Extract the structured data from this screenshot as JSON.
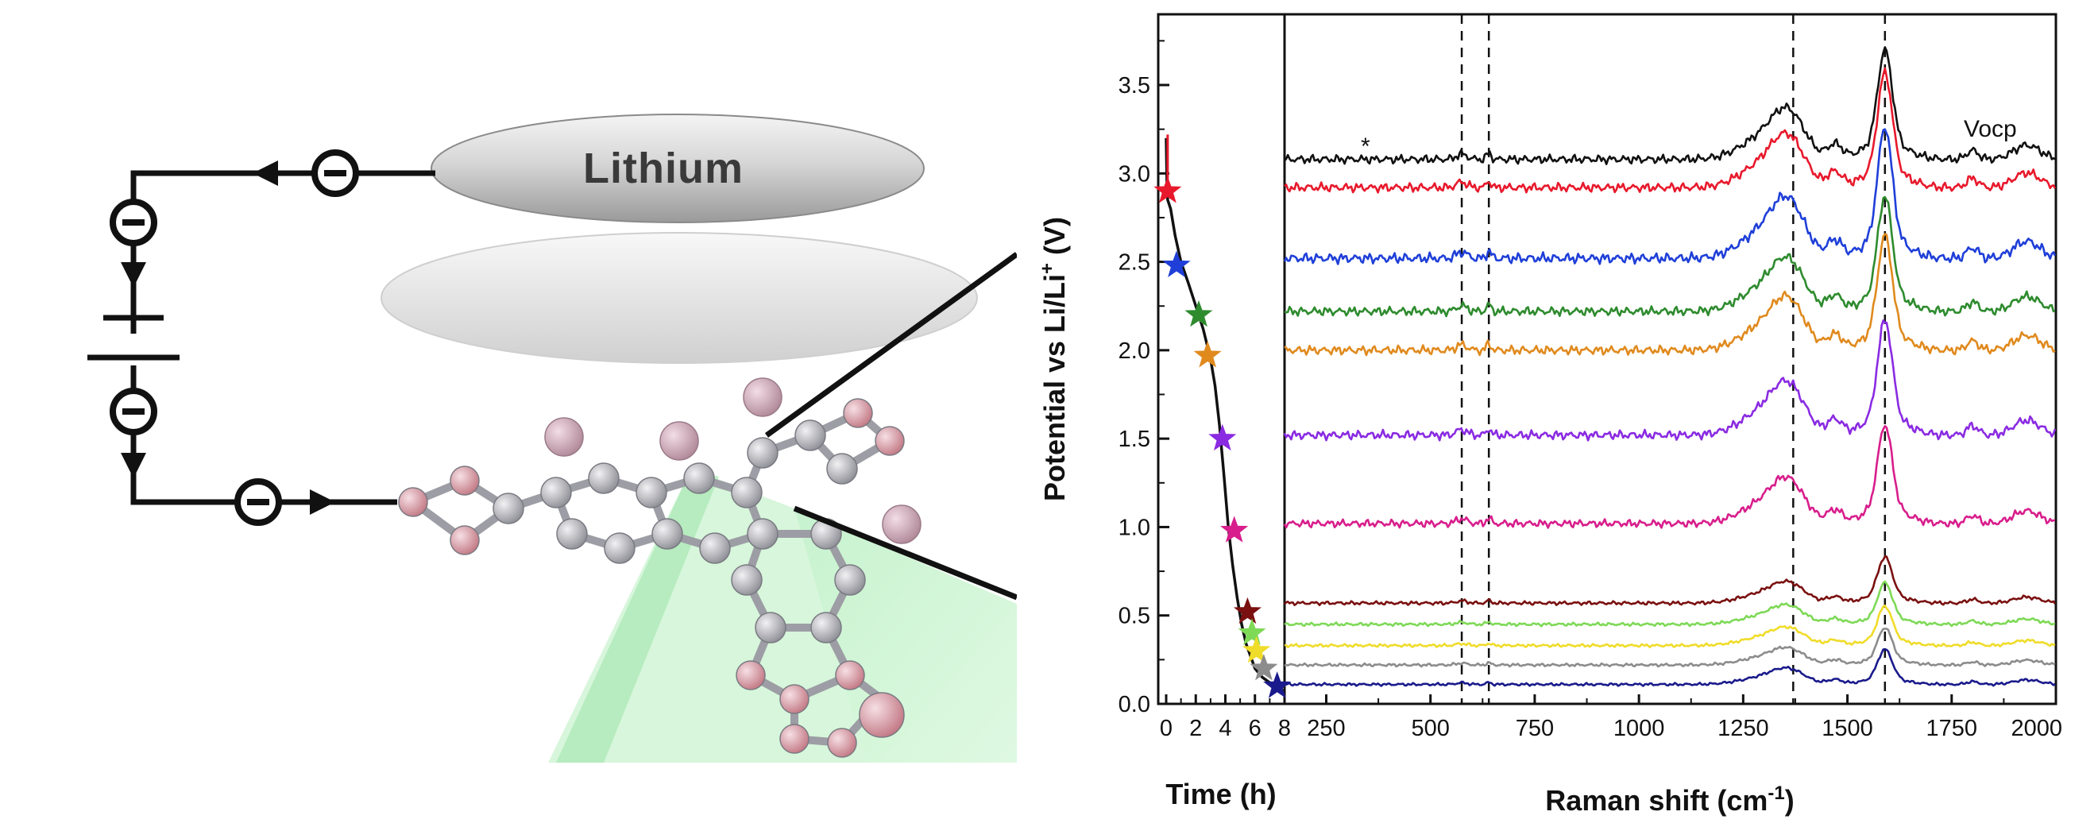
{
  "schematic": {
    "electrode_label": "Lithium"
  },
  "chart_data": [
    {
      "type": "line",
      "xlabel": "Time (h)",
      "ylabel": "Potential vs Li/Li+ (V)",
      "ylabel_parts": [
        "Potential vs Li/Li",
        "+",
        " (V)"
      ],
      "xlim": [
        0,
        8
      ],
      "ylim": [
        0.0,
        3.9
      ],
      "xticks": [
        "0",
        "2",
        "4",
        "6",
        "8"
      ],
      "yticks": [
        "0.0",
        "0.5",
        "1.0",
        "1.5",
        "2.0",
        "2.5",
        "3.0",
        "3.5"
      ],
      "series": [
        {
          "x": [
            0.0,
            0.05,
            0.1,
            0.3,
            0.6,
            1.0,
            1.5,
            2.0,
            2.5,
            3.0,
            3.3,
            3.6,
            3.9,
            4.2,
            4.5,
            4.8,
            5.1,
            5.4,
            5.7,
            6.0,
            6.5,
            7.0,
            7.5
          ],
          "y": [
            3.2,
            2.95,
            2.85,
            2.8,
            2.65,
            2.5,
            2.38,
            2.25,
            2.12,
            1.95,
            1.8,
            1.58,
            1.3,
            1.0,
            0.78,
            0.6,
            0.45,
            0.34,
            0.27,
            0.2,
            0.15,
            0.12,
            0.1
          ]
        }
      ],
      "markers": [
        {
          "x": 0.1,
          "y": 2.9,
          "color": "#e8192c"
        },
        {
          "x": 0.7,
          "y": 2.48,
          "color": "#1f3fd8"
        },
        {
          "x": 2.2,
          "y": 2.2,
          "color": "#2e8b2e"
        },
        {
          "x": 2.8,
          "y": 1.97,
          "color": "#e08a1e"
        },
        {
          "x": 3.8,
          "y": 1.5,
          "color": "#8a2be2"
        },
        {
          "x": 4.6,
          "y": 0.98,
          "color": "#d81e8c"
        },
        {
          "x": 5.5,
          "y": 0.52,
          "color": "#7a1010"
        },
        {
          "x": 5.8,
          "y": 0.4,
          "color": "#7ed957"
        },
        {
          "x": 6.1,
          "y": 0.3,
          "color": "#f0dc2a"
        },
        {
          "x": 6.6,
          "y": 0.2,
          "color": "#8c8c8c"
        },
        {
          "x": 7.5,
          "y": 0.1,
          "color": "#1a1a8c"
        }
      ]
    },
    {
      "type": "line",
      "xlabel": "Raman shift (cm-1)",
      "xlabel_parts": [
        "Raman shift (cm",
        "-1",
        ")"
      ],
      "xlim": [
        150,
        2000
      ],
      "xticks": [
        250,
        500,
        750,
        1000,
        1250,
        1500,
        1750,
        2000
      ],
      "dashed_lines_x": [
        575,
        640,
        1370,
        1590
      ],
      "annotations": [
        {
          "text": "Vocp",
          "x": 1920,
          "y": 3.28
        },
        {
          "text": "*",
          "x": 310,
          "y": 3.1
        }
      ],
      "series": [
        {
          "name": "Vocp",
          "color": "#111111",
          "baseline": 3.08,
          "scale": 1.0
        },
        {
          "color": "#e8192c",
          "baseline": 2.92,
          "scale": 1.05
        },
        {
          "color": "#1f3fd8",
          "baseline": 2.52,
          "scale": 1.2
        },
        {
          "color": "#2e8b2e",
          "baseline": 2.22,
          "scale": 1.05
        },
        {
          "color": "#e08a1e",
          "baseline": 2.0,
          "scale": 1.05
        },
        {
          "color": "#8a2be2",
          "baseline": 1.52,
          "scale": 1.05
        },
        {
          "color": "#d81e8c",
          "baseline": 1.02,
          "scale": 0.9
        },
        {
          "color": "#7a1010",
          "baseline": 0.57,
          "scale": 0.42
        },
        {
          "color": "#7ed957",
          "baseline": 0.45,
          "scale": 0.38
        },
        {
          "color": "#f0dc2a",
          "baseline": 0.33,
          "scale": 0.36
        },
        {
          "color": "#8c8c8c",
          "baseline": 0.22,
          "scale": 0.34
        },
        {
          "color": "#1a1a8c",
          "baseline": 0.11,
          "scale": 0.32
        }
      ]
    }
  ]
}
